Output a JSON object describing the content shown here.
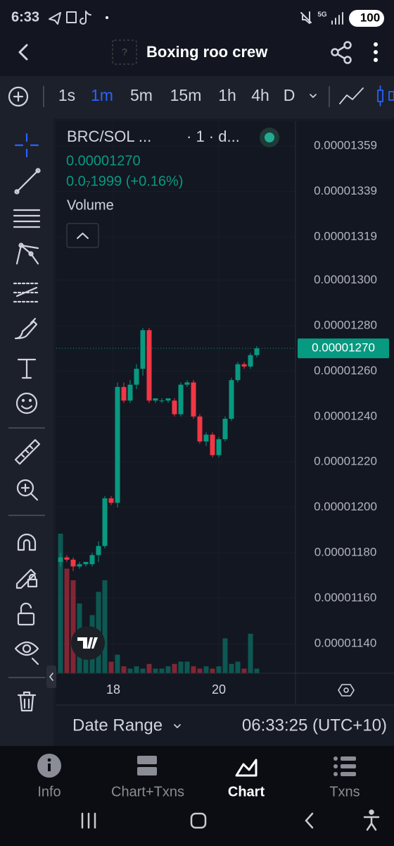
{
  "status_bar": {
    "time": "6:33",
    "network": "5G",
    "battery": "100"
  },
  "header": {
    "title": "Boxing roo crew"
  },
  "toolbar": {
    "timeframes": [
      "1s",
      "1m",
      "5m",
      "15m",
      "1h",
      "4h",
      "D"
    ],
    "active_index": 1
  },
  "chart_data": {
    "type": "candlestick",
    "symbol": "BRC/SOL ...",
    "interval": "· 1 · d...",
    "change": "0.0₇1999 (+0.16%)",
    "volume_label": "Volume",
    "last_price": {
      "value": 1.27e-05,
      "label": "0.00001270"
    },
    "up_color": "#089981",
    "down_color": "#f23645",
    "ylim": [
      1.127e-05,
      1.369e-05
    ],
    "yticks": [
      {
        "value": 1.359e-05,
        "label": "0.00001359"
      },
      {
        "value": 1.339e-05,
        "label": "0.00001339"
      },
      {
        "value": 1.319e-05,
        "label": "0.00001319"
      },
      {
        "value": 1.3e-05,
        "label": "0.00001300"
      },
      {
        "value": 1.28e-05,
        "label": "0.00001280"
      },
      {
        "value": 1.26e-05,
        "label": "0.00001260"
      },
      {
        "value": 1.24e-05,
        "label": "0.00001240"
      },
      {
        "value": 1.22e-05,
        "label": "0.00001220"
      },
      {
        "value": 1.2e-05,
        "label": "0.00001200"
      },
      {
        "value": 1.18e-05,
        "label": "0.00001180"
      },
      {
        "value": 1.16e-05,
        "label": "0.00001160"
      },
      {
        "value": 1.14e-05,
        "label": "0.00001140"
      }
    ],
    "x_labels": [
      "18",
      "20"
    ],
    "open": [
      1.176e-05,
      1.178e-05,
      1.177e-05,
      1.174e-05,
      1.175e-05,
      1.175e-05,
      1.179e-05,
      1.183e-05,
      1.204e-05,
      1.202e-05,
      1.253e-05,
      1.247e-05,
      1.254e-05,
      1.261e-05,
      1.278e-05,
      1.247e-05,
      1.247e-05,
      1.247e-05,
      1.247e-05,
      1.241e-05,
      1.254e-05,
      1.255e-05,
      1.24e-05,
      1.229e-05,
      1.232e-05,
      1.223e-05,
      1.23e-05,
      1.239e-05,
      1.256e-05,
      1.263e-05,
      1.262e-05,
      1.267e-05
    ],
    "high": [
      1.18e-05,
      1.179e-05,
      1.178e-05,
      1.176e-05,
      1.176e-05,
      1.18e-05,
      1.185e-05,
      1.205e-05,
      1.205e-05,
      1.255e-05,
      1.255e-05,
      1.256e-05,
      1.263e-05,
      1.279e-05,
      1.279e-05,
      1.248e-05,
      1.248e-05,
      1.248e-05,
      1.248e-05,
      1.255e-05,
      1.256e-05,
      1.256e-05,
      1.241e-05,
      1.233e-05,
      1.233e-05,
      1.231e-05,
      1.24e-05,
      1.257e-05,
      1.264e-05,
      1.264e-05,
      1.268e-05,
      1.271e-05
    ],
    "low": [
      1.174e-05,
      1.176e-05,
      1.172e-05,
      1.173e-05,
      1.174e-05,
      1.174e-05,
      1.176e-05,
      1.182e-05,
      1.201e-05,
      1.2e-05,
      1.246e-05,
      1.246e-05,
      1.252e-05,
      1.258e-05,
      1.246e-05,
      1.246e-05,
      1.246e-05,
      1.246e-05,
      1.24e-05,
      1.24e-05,
      1.253e-05,
      1.239e-05,
      1.228e-05,
      1.227e-05,
      1.222e-05,
      1.222e-05,
      1.229e-05,
      1.238e-05,
      1.255e-05,
      1.261e-05,
      1.261e-05,
      1.266e-05
    ],
    "close": [
      1.178e-05,
      1.177e-05,
      1.174e-05,
      1.175e-05,
      1.176e-05,
      1.179e-05,
      1.183e-05,
      1.204e-05,
      1.202e-05,
      1.253e-05,
      1.247e-05,
      1.254e-05,
      1.261e-05,
      1.278e-05,
      1.247e-05,
      1.248e-05,
      1.247e-05,
      1.248e-05,
      1.241e-05,
      1.254e-05,
      1.255e-05,
      1.24e-05,
      1.229e-05,
      1.232e-05,
      1.223e-05,
      1.23e-05,
      1.239e-05,
      1.256e-05,
      1.263e-05,
      1.262e-05,
      1.267e-05,
      1.27e-05
    ],
    "volume": [
      60,
      45,
      40,
      30,
      20,
      25,
      35,
      40,
      5,
      8,
      3,
      2,
      3,
      2,
      4,
      2,
      2,
      3,
      4,
      5,
      5,
      3,
      2,
      3,
      2,
      3,
      15,
      4,
      5,
      2,
      17,
      2
    ]
  },
  "footer": {
    "date_range": "Date Range",
    "clock": "06:33:25 (UTC+10)"
  },
  "nav": {
    "tabs": [
      "Info",
      "Chart+Txns",
      "Chart",
      "Txns"
    ],
    "active_index": 2
  }
}
